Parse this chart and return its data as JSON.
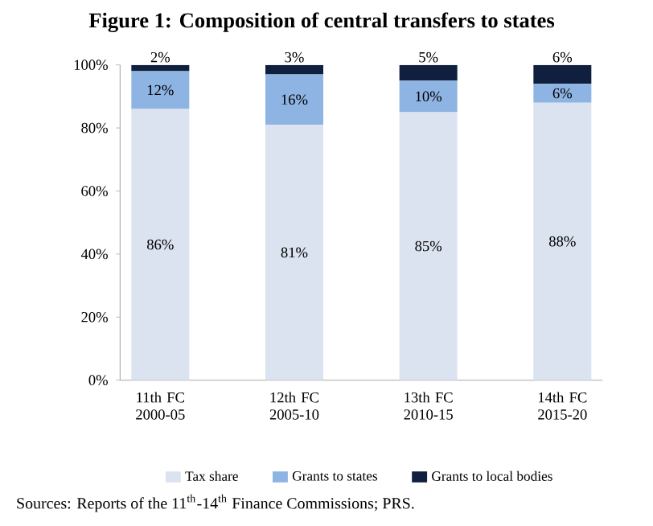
{
  "chart_data": {
    "type": "bar",
    "stacked": true,
    "title": "**Figure 1: Composition of central transfers to states**",
    "categories": [
      "11th FC 2000-05",
      "12th FC 2005-10",
      "13th FC 2010-15",
      "14th FC 2015-20"
    ],
    "series": [
      {
        "name": "Tax share",
        "color": "#dce3f0",
        "values": [
          86,
          81,
          85,
          88
        ],
        "value_labels": [
          "86%",
          "81%",
          "85%",
          "88%"
        ]
      },
      {
        "name": "Grants to states",
        "color": "#8eb4e3",
        "values": [
          12,
          16,
          10,
          6
        ],
        "value_labels": [
          "12%",
          "16%",
          "10%",
          "6%"
        ]
      },
      {
        "name": "Grants to local bodies",
        "color": "#0f1f3d",
        "values": [
          2,
          3,
          5,
          6
        ],
        "value_labels": [
          "2%",
          "3%",
          "5%",
          "6%"
        ]
      }
    ],
    "ylim": [
      0,
      100
    ],
    "yticks": [
      {
        "value": 0,
        "label": "0%"
      },
      {
        "value": 20,
        "label": "20%"
      },
      {
        "value": 40,
        "label": "40%"
      },
      {
        "value": 60,
        "label": "60%"
      },
      {
        "value": 80,
        "label": "80%"
      },
      {
        "value": 100,
        "label": "100%"
      }
    ],
    "legend": "bottom",
    "annotations": [
      "Sources: Reports of the 11$^{th}$-14$^{th}$ Finance Commissions; PRS."
    ]
  }
}
